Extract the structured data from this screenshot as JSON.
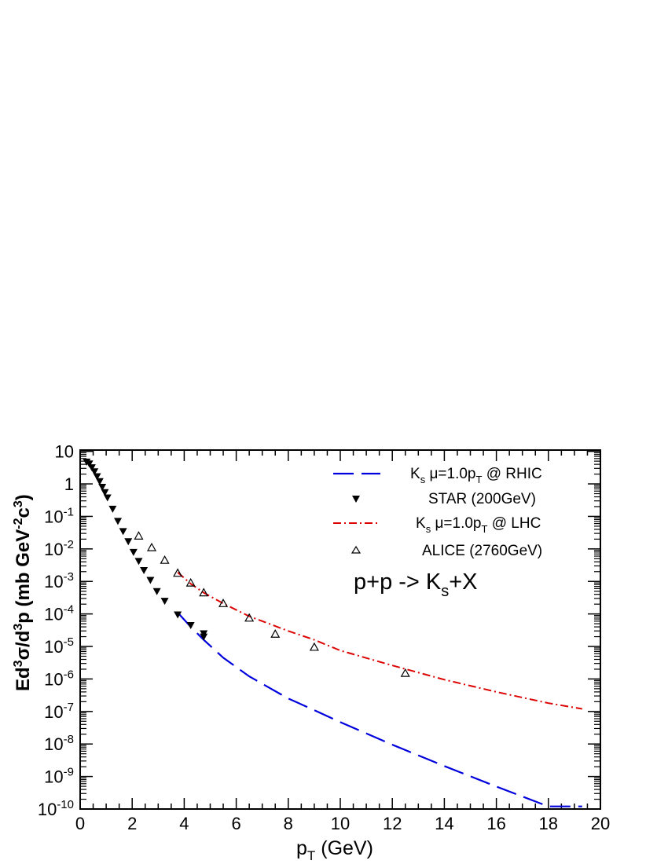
{
  "chart_data": {
    "type": "line",
    "xlabel": {
      "main": "p",
      "sub": "T",
      "rest": " (GeV)"
    },
    "ylabel": {
      "p1": "Ed",
      "s1": "3",
      "p2": "σ/d",
      "s2": "3",
      "p3": "p (mb GeV",
      "s3": "-2",
      "p4": "c",
      "s4": "3",
      "p5": ")"
    },
    "xlim": [
      0,
      20
    ],
    "ylim_log10": [
      -10,
      1.04
    ],
    "y_scale": "log",
    "x_ticks": [
      "0",
      "2",
      "4",
      "6",
      "8",
      "10",
      "12",
      "14",
      "16",
      "18",
      "20"
    ],
    "y_ticks": [
      {
        "exp": 1,
        "base": "10",
        "sup": ""
      },
      {
        "exp": 0,
        "base": "1",
        "sup": ""
      },
      {
        "exp": -1,
        "base": "10",
        "sup": "-1"
      },
      {
        "exp": -2,
        "base": "10",
        "sup": "-2"
      },
      {
        "exp": -3,
        "base": "10",
        "sup": "-3"
      },
      {
        "exp": -4,
        "base": "10",
        "sup": "-4"
      },
      {
        "exp": -5,
        "base": "10",
        "sup": "-5"
      },
      {
        "exp": -6,
        "base": "10",
        "sup": "-6"
      },
      {
        "exp": -7,
        "base": "10",
        "sup": "-7"
      },
      {
        "exp": -8,
        "base": "10",
        "sup": "-8"
      },
      {
        "exp": -9,
        "base": "10",
        "sup": "-9"
      },
      {
        "exp": -10,
        "base": "10",
        "sup": "-10"
      }
    ],
    "annotation": {
      "main": "p+p -> K",
      "sub": "s",
      "rest": "+X"
    },
    "legend_position": "top-right",
    "series": [
      {
        "name": "K_s μ=1.0p_T @ RHIC",
        "style": "dashed",
        "color": "#0000dd",
        "x": [
          3.75,
          4.25,
          4.75,
          5.5,
          6.5,
          8,
          9,
          10,
          12,
          14,
          16,
          18,
          19.3
        ],
        "y": [
          0.00011,
          4e-05,
          1.6e-05,
          4.5e-06,
          1.2e-06,
          2.5e-07,
          1.1e-07,
          4.7e-08,
          9.5e-09,
          2.1e-09,
          4.9e-10,
          1.2e-10,
          1.2e-10
        ]
      },
      {
        "name": "STAR (200GeV)",
        "style": "marker-filled-down-triangle",
        "color": "#000000",
        "x": [
          0.25,
          0.35,
          0.45,
          0.55,
          0.65,
          0.75,
          0.85,
          0.95,
          1.05,
          1.25,
          1.45,
          1.65,
          1.85,
          2.05,
          2.25,
          2.45,
          2.7,
          2.95,
          3.25,
          3.75,
          4.25,
          4.75,
          4.75
        ],
        "y": [
          4.8,
          4.2,
          3.2,
          2.4,
          1.7,
          1.2,
          0.8,
          0.55,
          0.38,
          0.17,
          0.072,
          0.035,
          0.017,
          0.008,
          0.0042,
          0.0022,
          0.0011,
          0.0005,
          0.00025,
          9.5e-05,
          4.5e-05,
          2.5e-05,
          2e-05
        ]
      },
      {
        "name": "K_s μ=1.0p_T @ LHC",
        "style": "dash-dot",
        "color": "#dd0000",
        "x": [
          3.75,
          4.25,
          4.75,
          5.5,
          6.5,
          8,
          9,
          10,
          12,
          14,
          16,
          18,
          19.3
        ],
        "y": [
          0.0019,
          0.00085,
          0.00045,
          0.00021,
          8.5e-05,
          3e-05,
          1.6e-05,
          7.5e-06,
          2.6e-06,
          9.5e-07,
          4e-07,
          1.8e-07,
          1.2e-07
        ]
      },
      {
        "name": "ALICE (2760GeV)",
        "style": "marker-open-up-triangle",
        "color": "#000000",
        "x": [
          2.25,
          2.75,
          3.25,
          3.75,
          4.25,
          4.75,
          5.5,
          6.5,
          7.5,
          9.0,
          12.5
        ],
        "y": [
          0.025,
          0.011,
          0.0045,
          0.0018,
          0.0009,
          0.00045,
          0.00021,
          7.5e-05,
          2.4e-05,
          9.5e-06,
          1.5e-06
        ]
      }
    ],
    "legend": [
      {
        "key": "rhic",
        "parts": {
          "main": "K",
          "sub": "s",
          "mid": "  μ=1.0p",
          "sub2": "T",
          "rest": " @ RHIC"
        }
      },
      {
        "key": "star",
        "parts": {
          "main": "STAR (200GeV)"
        }
      },
      {
        "key": "lhc",
        "parts": {
          "main": "K",
          "sub": "s",
          "mid": "  μ=1.0p",
          "sub2": "T",
          "rest": " @ LHC"
        }
      },
      {
        "key": "alice",
        "parts": {
          "main": "ALICE (2760GeV)"
        }
      }
    ]
  }
}
